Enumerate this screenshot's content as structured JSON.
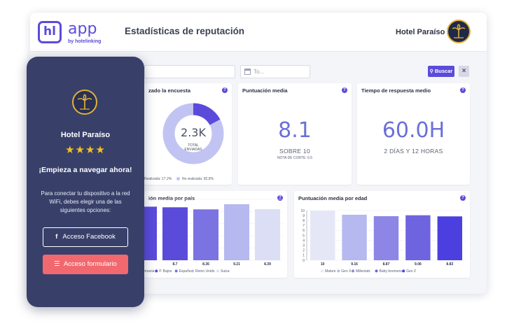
{
  "header": {
    "logo_mark": "hl",
    "logo_app": "app",
    "logo_by": "by hotelinking",
    "title": "Estadísticas de reputación",
    "hotel_name": "Hotel Paraíso",
    "hotel_badge_icon": "palm-tree-badge-icon"
  },
  "filters": {
    "date_to_placeholder": "To...",
    "search_label": "Buscar",
    "clear_label": "×"
  },
  "cards": {
    "survey": {
      "title": "zado la encuesta",
      "total_value": "2.3K",
      "total_label_1": "TOTAL",
      "total_label_2": "ENVIADAS",
      "legend_done": "Realizada: 17.2%",
      "legend_not_done": "No realizada: 82.8%",
      "done_pct": 17.2,
      "colors": {
        "done": "#5b4bdb",
        "not_done": "#c1c4f2"
      }
    },
    "score": {
      "title": "Puntuación media",
      "value": "8.1",
      "sub": "SOBRE 10",
      "note": "NOTA DE CORTE: 6.5"
    },
    "response": {
      "title": "Tiempo de respuesta medio",
      "value": "60.0H",
      "sub": "2 DÍAS Y 12 HORAS"
    }
  },
  "country_chart": {
    "title": "ión media por país"
  },
  "age_chart": {
    "title": "Puntuación media por edad"
  },
  "chart_data": [
    {
      "type": "bar",
      "title": "ión media por país",
      "categories": [
        "Alemania",
        "P. Bajos",
        "España",
        "Reino Unido",
        "Suiza"
      ],
      "category_labels": [
        "emania",
        "P. Bajos",
        "España",
        "Reino Unido",
        "Suiza"
      ],
      "values": [
        8.8,
        8.7,
        8.36,
        9.21,
        8.39
      ],
      "value_labels": [
        "",
        "8.7",
        "8.36",
        "9.21",
        "8.39"
      ],
      "colors": [
        "#5b4bdb",
        "#5b4bdb",
        "#7b73e1",
        "#b6b9ef",
        "#dcdef5"
      ],
      "ylim": [
        0,
        10
      ]
    },
    {
      "type": "bar",
      "title": "Puntuación media por edad",
      "categories": [
        "Mature",
        "Gen X",
        "Millenials",
        "Baby boomers",
        "Gen Z"
      ],
      "values": [
        10,
        9.16,
        8.87,
        9.06,
        8.83
      ],
      "value_labels": [
        "10",
        "9.16",
        "8.87",
        "9.06",
        "8.83"
      ],
      "colors": [
        "#e6e7f6",
        "#b6b9ef",
        "#8d86e6",
        "#6e64df",
        "#4b3fe0"
      ],
      "yticks": [
        "0",
        "1",
        "2",
        "3",
        "4",
        "5",
        "6",
        "7",
        "8",
        "9",
        "10"
      ],
      "ylim": [
        0,
        10
      ]
    }
  ],
  "phone": {
    "hotel_name": "Hotel Paraíso",
    "stars": "★★★★",
    "heading": "¡Empieza a navegar ahora!",
    "body": "Para conectar tu dispositivo a la red WiFi, debes elegir una de las siguientes opciones:",
    "facebook_label": "Acceso Facebook",
    "form_label": "Acceso formulario",
    "facebook_icon": "facebook-icon",
    "form_icon": "list-icon"
  }
}
